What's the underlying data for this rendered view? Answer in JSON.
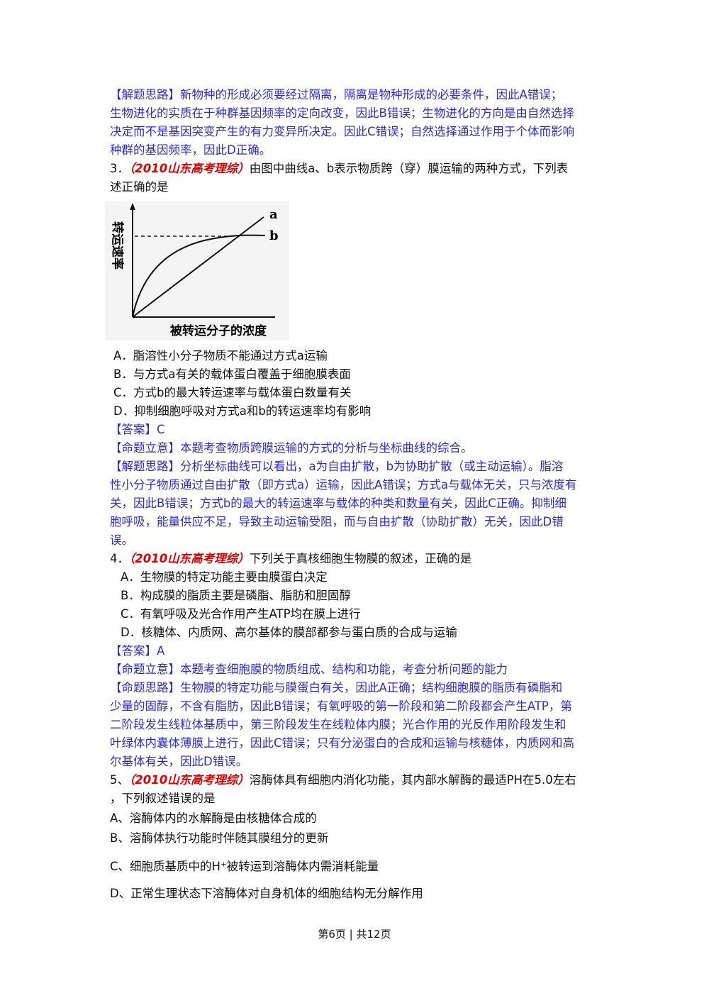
{
  "q2_analysis": [
    "【解题思路】新物种的形成必须要经过隔离，隔离是物种形成的必要条件，因此A错误；",
    "生物进化的实质在于种群基因频率的定向改变，因此B错误；生物进化的方向是由自然选择",
    "决定而不是基因突变产生的有力变异所决定。因此C错误；自然选择通过作用于个体而影响",
    "种群的基因频率，因此D正确。"
  ],
  "q3": {
    "number": "3．",
    "source": "（2010山东高考理综）",
    "stem": [
      "由图中曲线a、b表示物质跨（穿）膜运输的两种方式，下列表",
      "述正确的是"
    ],
    "figure": {
      "y_label": "转运速率",
      "x_label": "被转运分子的浓度",
      "curve_a": "a",
      "curve_b": "b"
    },
    "options": [
      "A．脂溶性小分子物质不能通过方式a运输",
      "B．与方式a有关的载体蛋白覆盖于细胞膜表面",
      "C．方式b的最大转运速率与载体蛋白数量有关",
      "D．抑制细胞呼吸对方式a和b的转运速率均有影响"
    ],
    "answer": "【答案】C",
    "intent": "【命题立意】本题考查物质跨膜运输的方式的分析与坐标曲线的综合。",
    "analysis": [
      "【解题思路】分析坐标曲线可以看出，a为自由扩散，b为协助扩散（或主动运输）。脂溶",
      "性小分子物质通过自由扩散（即方式a）运输，因此A错误；方式a与载体无关，只与浓度有",
      "关，因此B错误；方式b的最大的转运速率与载体的种类和数量有关，因此C正确。抑制细",
      "胞呼吸，能量供应不足，导致主动运输受阻，而与自由扩散（协助扩散）无关，因此D错",
      "误。"
    ]
  },
  "q4": {
    "number": "4．",
    "source": "（2010山东高考理综）",
    "stem": [
      "下列关于真核细胞生物膜的叙述，正确的是"
    ],
    "options": [
      "A．生物膜的特定功能主要由膜蛋白决定",
      "B．构成膜的脂质主要是磷脂、脂肪和胆固醇",
      "C．有氧呼吸及光合作用产生ATP均在膜上进行",
      "D．核糖体、内质网、高尔基体的膜部都参与蛋白质的合成与运输"
    ],
    "answer": "【答案】A",
    "intent": "【命题立意】本题考查细胞膜的物质组成、结构和功能，考查分析问题的能力",
    "analysis": [
      "【命题思路】生物膜的特定功能与膜蛋白有关，因此A正确；结构细胞膜的脂质有磷脂和",
      "少量的固醇，不含有脂肪，因此B错误；有氧呼吸的第一阶段和第二阶段都会产生ATP，第",
      "二阶段发生线粒体基质中，第三阶段发生在线粒体内膜；光合作用的光反作用阶段发生和",
      "叶绿体内囊体薄膜上进行，因此C错误；只有分泌蛋白的合成和运输与核糖体，内质网和高",
      "尔基体有关，因此D错误。"
    ]
  },
  "q5": {
    "number": "5、",
    "source": "（2010山东高考理综）",
    "stem": [
      "溶酶体具有细胞内消化功能，其内部水解酶的最适PH在5.0左右",
      "，下列叙述错误的是"
    ],
    "option_a": "A、溶酶体内的水解酶是由核糖体合成的",
    "option_b": "B、溶酶体执行功能时伴随其膜组分的更新",
    "option_c": {
      "before": "C、细胞质基质中的",
      "ion": "H⁺",
      "after": "被转运到溶酶体内需消耗能量"
    },
    "option_d": "D、正常生理状态下溶酶体对自身机体的细胞结构无分解作用"
  },
  "footer": "第6页 | 共12页"
}
